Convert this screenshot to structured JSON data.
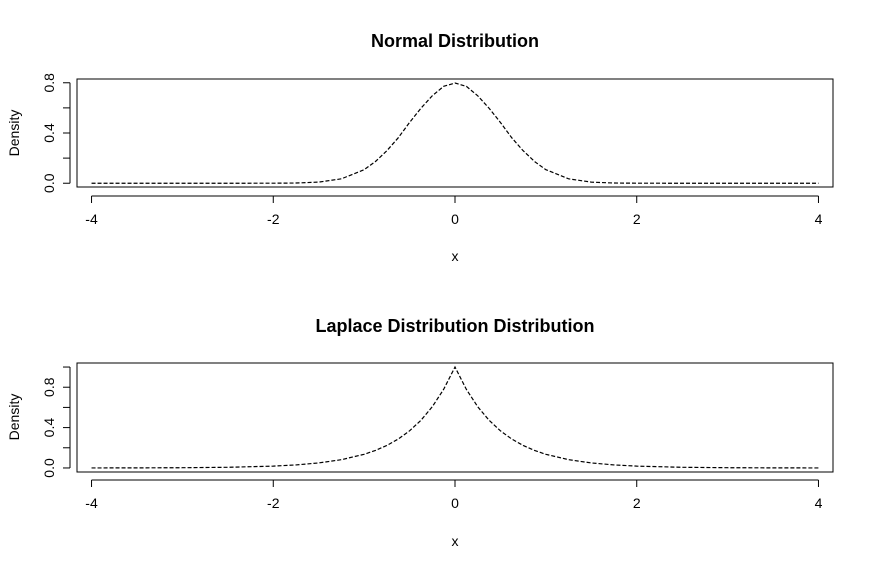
{
  "chart_data": [
    {
      "type": "line",
      "title": "Normal Distribution",
      "xlabel": "x",
      "ylabel": "Density",
      "xlim": [
        -4.16,
        4.16
      ],
      "ylim": [
        -0.03,
        0.83
      ],
      "xticks": [
        -4,
        -2,
        0,
        2,
        4
      ],
      "xtick_labels": [
        "-4",
        "-2",
        "0",
        "2",
        "4"
      ],
      "yticks": [
        0.0,
        0.2,
        0.4,
        0.6,
        0.8
      ],
      "ytick_labels": [
        "0.0",
        "",
        "0.4",
        "",
        "0.8"
      ],
      "line_style": "dashed",
      "grid": false,
      "series": [
        {
          "x": [
            -4,
            -3.5,
            -3,
            -2.5,
            -2,
            -1.75,
            -1.5,
            -1.25,
            -1,
            -0.875,
            -0.75,
            -0.625,
            -0.5,
            -0.375,
            -0.25,
            -0.125,
            0,
            0.125,
            0.25,
            0.375,
            0.5,
            0.625,
            0.75,
            0.875,
            1,
            1.25,
            1.5,
            1.75,
            2,
            2.5,
            3,
            3.5,
            4
          ],
          "values": [
            0.0,
            0.0,
            0.0,
            0.0,
            0.0003,
            0.0016,
            0.0089,
            0.0351,
            0.1079,
            0.1731,
            0.259,
            0.3616,
            0.4839,
            0.5972,
            0.6965,
            0.7715,
            0.7979,
            0.7715,
            0.6965,
            0.5972,
            0.4839,
            0.3616,
            0.259,
            0.1731,
            0.1079,
            0.0351,
            0.0089,
            0.0016,
            0.0003,
            0.0,
            0.0,
            0.0,
            0.0
          ]
        }
      ]
    },
    {
      "type": "line",
      "title": "Laplace Distribution Distribution",
      "xlabel": "x",
      "ylabel": "Density",
      "xlim": [
        -4.16,
        4.16
      ],
      "ylim": [
        -0.04,
        1.04
      ],
      "xticks": [
        -4,
        -2,
        0,
        2,
        4
      ],
      "xtick_labels": [
        "-4",
        "-2",
        "0",
        "2",
        "4"
      ],
      "yticks": [
        0.0,
        0.2,
        0.4,
        0.6,
        0.8,
        1.0
      ],
      "ytick_labels": [
        "0.0",
        "",
        "0.4",
        "",
        "0.8",
        ""
      ],
      "line_style": "dashed",
      "grid": false,
      "series": [
        {
          "x": [
            -4,
            -3.5,
            -3,
            -2.5,
            -2,
            -1.75,
            -1.5,
            -1.25,
            -1,
            -0.875,
            -0.75,
            -0.625,
            -0.5,
            -0.375,
            -0.25,
            -0.125,
            0,
            0.125,
            0.25,
            0.375,
            0.5,
            0.625,
            0.75,
            0.875,
            1,
            1.25,
            1.5,
            1.75,
            2,
            2.5,
            3,
            3.5,
            4
          ],
          "values": [
            0.0003,
            0.0009,
            0.0025,
            0.0067,
            0.0183,
            0.0302,
            0.0498,
            0.0821,
            0.1353,
            0.1738,
            0.2231,
            0.2865,
            0.3679,
            0.4724,
            0.6065,
            0.7788,
            1.0,
            0.7788,
            0.6065,
            0.4724,
            0.3679,
            0.2865,
            0.2231,
            0.1738,
            0.1353,
            0.0821,
            0.0498,
            0.0302,
            0.0183,
            0.0067,
            0.0025,
            0.0009,
            0.0003
          ]
        }
      ]
    }
  ]
}
